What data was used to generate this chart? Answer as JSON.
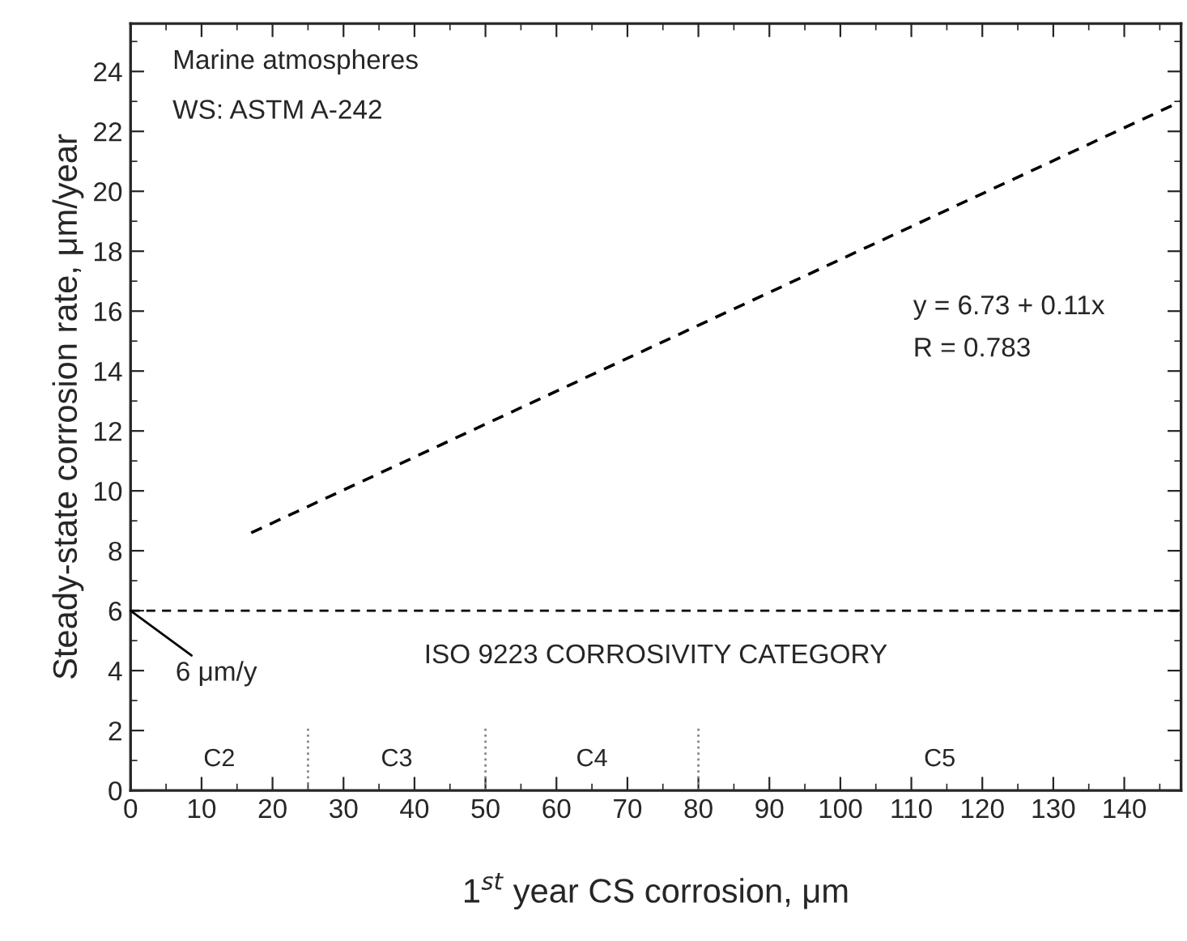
{
  "chart_data": {
    "type": "line",
    "xlabel": "1$^{st}$ year CS corrosion, μm",
    "ylabel": "Steady-state corrosion rate, μm/year",
    "series": [
      {
        "color": "#000000",
        "line_style": "dashed",
        "x": [
          17,
          148
        ],
        "values": [
          8.6,
          23.0
        ]
      }
    ],
    "xlim": [
      0,
      148
    ],
    "xticks": [
      0,
      10,
      20,
      30,
      40,
      50,
      60,
      70,
      80,
      90,
      100,
      110,
      120,
      130,
      140
    ],
    "ylim": [
      0,
      25.6
    ],
    "yticks": [
      0,
      2,
      4,
      6,
      8,
      10,
      12,
      14,
      16,
      18,
      20,
      22,
      24
    ],
    "ref_lines": [
      {
        "axis": "y",
        "value": 6,
        "color": "#000000",
        "line_style": "dashed"
      },
      {
        "axis": "x",
        "value": 25,
        "color": "#888888",
        "line_style": "dotted"
      },
      {
        "axis": "x",
        "value": 50,
        "color": "#888888",
        "line_style": "dotted"
      },
      {
        "axis": "x",
        "value": 80,
        "color": "#888888",
        "line_style": "dotted"
      }
    ],
    "annotations": [
      "C2",
      "C3",
      "C4",
      "C5",
      "Marine atmospheres",
      "WS: ASTM A-242",
      "y = 6.73 + 0.11x",
      "R = 0.783",
      "ISO 9223 CORROSIVITY CATEGORY",
      {
        "text": "6 μm/y",
        "x": 0,
        "y": 6
      }
    ],
    "grid": false,
    "marker": "none"
  }
}
